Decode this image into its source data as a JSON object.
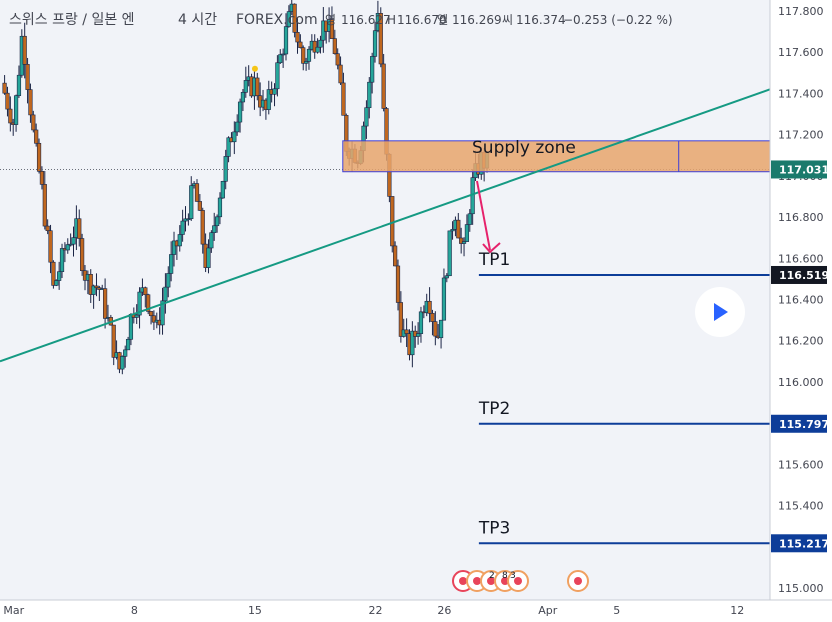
{
  "header": {
    "symbol": "스위스 프랑 / 일본 엔",
    "interval": "4 시간",
    "source": "FOREX.com",
    "open_label": "영",
    "open": "116.627",
    "high_label": "H",
    "high": "116.670",
    "low_label": "엘",
    "low": "116.269",
    "close_label": "씨",
    "close": "116.374",
    "change": "−0.253 (−0.22 %)"
  },
  "colors": {
    "up": "#26a69a",
    "down": "#c0671f",
    "wick": "#1b2445",
    "trendline": "#159a83",
    "supply_fill": "#e8a46c",
    "supply_border": "#3f3fd8",
    "tp_line": "#0d3d99",
    "price_label_bg": "#0d3d99",
    "current_price_bg": "#1a7a6c",
    "arrow": "#e6216b",
    "background": "#f1f3f8"
  },
  "chart_data": {
    "type": "candlestick",
    "ylim": [
      114.94,
      117.88
    ],
    "y_ticks": [
      115.0,
      115.2,
      115.4,
      115.6,
      115.8,
      116.0,
      116.2,
      116.4,
      116.6,
      116.8,
      117.0,
      117.2,
      117.4,
      117.6,
      117.8
    ],
    "y_tick_labels": [
      "115.000",
      "115.200",
      "115.400",
      "115.600",
      "115.800",
      "116.000",
      "116.200",
      "116.400",
      "116.600",
      "116.800",
      "117.000",
      "117.200",
      "117.400",
      "117.600",
      "117.800"
    ],
    "x_ticks": [
      {
        "label": "Mar",
        "day": 1
      },
      {
        "label": "8",
        "day": 8
      },
      {
        "label": "15",
        "day": 15
      },
      {
        "label": "22",
        "day": 22
      },
      {
        "label": "26",
        "day": 26
      },
      {
        "label": "Apr",
        "day": 32
      },
      {
        "label": "5",
        "day": 36
      },
      {
        "label": "12",
        "day": 43
      }
    ],
    "xlim_day": [
      0.2,
      44.9
    ],
    "close_path": [
      [
        0.3,
        117.45
      ],
      [
        1.0,
        117.25
      ],
      [
        1.5,
        117.7
      ],
      [
        2.2,
        117.15
      ],
      [
        2.6,
        116.95
      ],
      [
        3.3,
        116.45
      ],
      [
        4.0,
        116.65
      ],
      [
        4.6,
        116.75
      ],
      [
        5.2,
        116.5
      ],
      [
        6.0,
        116.45
      ],
      [
        6.6,
        116.25
      ],
      [
        7.1,
        116.05
      ],
      [
        7.9,
        116.35
      ],
      [
        8.6,
        116.45
      ],
      [
        9.3,
        116.25
      ],
      [
        10.0,
        116.55
      ],
      [
        10.8,
        116.75
      ],
      [
        11.5,
        116.95
      ],
      [
        12.2,
        116.55
      ],
      [
        12.8,
        116.85
      ],
      [
        13.5,
        117.15
      ],
      [
        14.2,
        117.4
      ],
      [
        15.0,
        117.45
      ],
      [
        15.6,
        117.3
      ],
      [
        16.4,
        117.55
      ],
      [
        17.1,
        117.8
      ],
      [
        17.8,
        117.55
      ],
      [
        18.4,
        117.65
      ],
      [
        19.1,
        117.75
      ],
      [
        19.7,
        117.6
      ],
      [
        20.3,
        117.15
      ],
      [
        21.0,
        117.1
      ],
      [
        21.6,
        117.4
      ],
      [
        22.1,
        117.85
      ],
      [
        22.5,
        117.25
      ],
      [
        22.9,
        116.75
      ],
      [
        23.4,
        116.3
      ],
      [
        23.9,
        116.15
      ],
      [
        24.4,
        116.25
      ],
      [
        25.0,
        116.45
      ],
      [
        25.6,
        116.2
      ],
      [
        26.1,
        116.55
      ],
      [
        26.6,
        116.85
      ],
      [
        27.1,
        116.6
      ],
      [
        27.6,
        116.95
      ],
      [
        28.1,
        117.08
      ],
      [
        28.6,
        117.05
      ]
    ],
    "current_price": 117.031,
    "current_price_label": "117.031",
    "supply_zone": {
      "label": "Supply zone",
      "y_low": 117.02,
      "y_high": 117.17,
      "x_start_day": 20.1,
      "x_split_day": 39.6
    },
    "trendline": {
      "p1": [
        0.2,
        116.1
      ],
      "p2": [
        44.9,
        117.42
      ]
    },
    "tp_lines": [
      {
        "label": "TP1",
        "value": 116.519,
        "value_label": "116.519",
        "x_start_day": 28.0
      },
      {
        "label": "TP2",
        "value": 115.797,
        "value_label": "115.797",
        "x_start_day": 28.0
      },
      {
        "label": "TP3",
        "value": 115.217,
        "value_label": "115.217",
        "x_start_day": 28.0
      }
    ],
    "marker": {
      "day": 15.0,
      "value": 117.52
    }
  },
  "events": {
    "badge_a": "2",
    "badge_b": "8",
    "badge_c": "3"
  }
}
